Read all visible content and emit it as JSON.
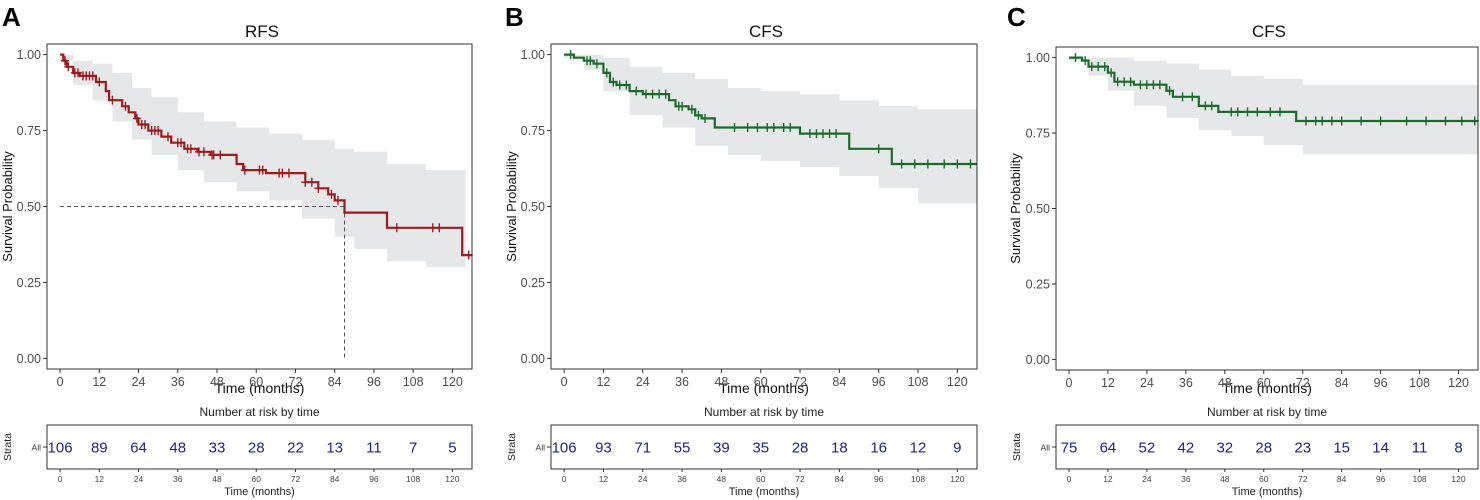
{
  "colors": {
    "band": "#e6e7e9",
    "axis": "#333333",
    "tick_text": "#4d4d4d",
    "risk_number": "#1f1f8f",
    "median_line": "#555555"
  },
  "chart_data": [
    {
      "type": "line",
      "panel_label": "A",
      "title": "RFS",
      "xlabel": "Time (months)",
      "ylabel": "Survival Probability",
      "xlim": [
        -4,
        126
      ],
      "ylim": [
        -0.035,
        1.035
      ],
      "x_ticks": [
        0,
        12,
        24,
        36,
        48,
        60,
        72,
        84,
        96,
        108,
        120
      ],
      "x_tick_labels": [
        "0",
        "12",
        "24",
        "36",
        "48",
        "60",
        "72",
        "84",
        "96",
        "108",
        "120"
      ],
      "y_ticks": [
        0,
        0.25,
        0.5,
        0.75,
        1
      ],
      "y_tick_labels": [
        "0.00",
        "0.25",
        "0.50",
        "0.75",
        "1.00"
      ],
      "line_color": "#9c1c1c",
      "median": {
        "value": 0.5,
        "time": 87
      },
      "series": [
        {
          "name": "All",
          "steps": [
            [
              0,
              1.0
            ],
            [
              1,
              0.98
            ],
            [
              2,
              0.96
            ],
            [
              4,
              0.94
            ],
            [
              6,
              0.93
            ],
            [
              11,
              0.91
            ],
            [
              14,
              0.88
            ],
            [
              15,
              0.85
            ],
            [
              19,
              0.83
            ],
            [
              21,
              0.81
            ],
            [
              23,
              0.79
            ],
            [
              24,
              0.77
            ],
            [
              27,
              0.75
            ],
            [
              31,
              0.73
            ],
            [
              34,
              0.71
            ],
            [
              38,
              0.69
            ],
            [
              42,
              0.68
            ],
            [
              46,
              0.67
            ],
            [
              54,
              0.64
            ],
            [
              56,
              0.62
            ],
            [
              63,
              0.61
            ],
            [
              75,
              0.58
            ],
            [
              79,
              0.56
            ],
            [
              82,
              0.54
            ],
            [
              84,
              0.52
            ],
            [
              87,
              0.48
            ],
            [
              100,
              0.43
            ],
            [
              123,
              0.34
            ],
            [
              126,
              0.34
            ]
          ],
          "band_upper": [
            [
              0,
              1.0
            ],
            [
              4,
              0.98
            ],
            [
              10,
              0.97
            ],
            [
              16,
              0.94
            ],
            [
              22,
              0.89
            ],
            [
              28,
              0.86
            ],
            [
              36,
              0.81
            ],
            [
              44,
              0.78
            ],
            [
              54,
              0.76
            ],
            [
              64,
              0.74
            ],
            [
              74,
              0.72
            ],
            [
              84,
              0.69
            ],
            [
              90,
              0.68
            ],
            [
              100,
              0.64
            ],
            [
              112,
              0.62
            ],
            [
              124,
              0.57
            ]
          ],
          "band_lower": [
            [
              0,
              0.98
            ],
            [
              4,
              0.9
            ],
            [
              10,
              0.85
            ],
            [
              16,
              0.78
            ],
            [
              22,
              0.72
            ],
            [
              28,
              0.67
            ],
            [
              36,
              0.62
            ],
            [
              44,
              0.58
            ],
            [
              54,
              0.55
            ],
            [
              64,
              0.52
            ],
            [
              74,
              0.46
            ],
            [
              84,
              0.4
            ],
            [
              90,
              0.36
            ],
            [
              100,
              0.32
            ],
            [
              112,
              0.3
            ],
            [
              124,
              0.2
            ]
          ],
          "censor_times": [
            1.5,
            2.5,
            4.5,
            5.5,
            7,
            8,
            9,
            10,
            12,
            16,
            20,
            23.5,
            25,
            26,
            28,
            29,
            30,
            33,
            36,
            37,
            39,
            40,
            42.5,
            44,
            46.5,
            47,
            49,
            56.5,
            61,
            62,
            67,
            68,
            70,
            75,
            77,
            79,
            83,
            85,
            103,
            114,
            116,
            125
          ]
        }
      ],
      "risk_table": {
        "title": "Number at risk by time",
        "ylabel": "Strata",
        "row_label": "All",
        "xlabel": "Time (months)",
        "times": [
          0,
          12,
          24,
          36,
          48,
          60,
          72,
          84,
          96,
          108,
          120
        ],
        "time_labels": [
          "0",
          "12",
          "24",
          "36",
          "48",
          "60",
          "72",
          "84",
          "96",
          "108",
          "120"
        ],
        "counts": [
          106,
          89,
          64,
          48,
          33,
          28,
          22,
          13,
          11,
          7,
          5
        ]
      }
    },
    {
      "type": "line",
      "panel_label": "B",
      "title": "CFS",
      "xlabel": "Time (months)",
      "ylabel": "Survival Probability",
      "xlim": [
        -4,
        126
      ],
      "ylim": [
        -0.035,
        1.035
      ],
      "x_ticks": [
        0,
        12,
        24,
        36,
        48,
        60,
        72,
        84,
        96,
        108,
        120
      ],
      "x_tick_labels": [
        "0",
        "12",
        "24",
        "36",
        "48",
        "60",
        "72",
        "84",
        "96",
        "108",
        "120"
      ],
      "y_ticks": [
        0,
        0.25,
        0.5,
        0.75,
        1
      ],
      "y_tick_labels": [
        "0.00",
        "0.25",
        "0.50",
        "0.75",
        "1.00"
      ],
      "line_color": "#1b6b2a",
      "median": null,
      "series": [
        {
          "name": "All",
          "steps": [
            [
              0,
              1.0
            ],
            [
              3,
              0.99
            ],
            [
              6,
              0.98
            ],
            [
              9,
              0.97
            ],
            [
              12,
              0.94
            ],
            [
              14,
              0.91
            ],
            [
              16,
              0.9
            ],
            [
              20,
              0.88
            ],
            [
              24,
              0.87
            ],
            [
              32,
              0.85
            ],
            [
              34,
              0.83
            ],
            [
              38,
              0.82
            ],
            [
              40,
              0.8
            ],
            [
              42,
              0.79
            ],
            [
              46,
              0.76
            ],
            [
              72,
              0.74
            ],
            [
              87,
              0.69
            ],
            [
              100,
              0.64
            ],
            [
              126,
              0.64
            ]
          ],
          "band_upper": [
            [
              0,
              1.0
            ],
            [
              6,
              1.0
            ],
            [
              12,
              0.99
            ],
            [
              20,
              0.96
            ],
            [
              30,
              0.94
            ],
            [
              40,
              0.92
            ],
            [
              50,
              0.89
            ],
            [
              60,
              0.88
            ],
            [
              72,
              0.87
            ],
            [
              84,
              0.85
            ],
            [
              96,
              0.83
            ],
            [
              108,
              0.82
            ],
            [
              126,
              0.82
            ]
          ],
          "band_lower": [
            [
              0,
              0.99
            ],
            [
              6,
              0.95
            ],
            [
              12,
              0.88
            ],
            [
              20,
              0.8
            ],
            [
              30,
              0.76
            ],
            [
              40,
              0.7
            ],
            [
              50,
              0.67
            ],
            [
              60,
              0.65
            ],
            [
              72,
              0.63
            ],
            [
              84,
              0.6
            ],
            [
              96,
              0.56
            ],
            [
              108,
              0.51
            ],
            [
              126,
              0.51
            ]
          ],
          "censor_times": [
            2,
            7,
            8,
            10,
            13,
            15,
            17,
            19,
            22,
            25,
            27,
            29,
            31,
            35,
            36,
            39,
            41,
            43,
            52,
            56,
            59,
            62,
            64,
            67,
            69,
            75,
            77,
            79,
            81,
            83,
            96,
            103,
            107,
            111,
            116,
            120,
            124
          ]
        }
      ],
      "risk_table": {
        "title": "Number at risk by time",
        "ylabel": "Strata",
        "row_label": "All",
        "xlabel": "Time (months)",
        "times": [
          0,
          12,
          24,
          36,
          48,
          60,
          72,
          84,
          96,
          108,
          120
        ],
        "time_labels": [
          "0",
          "12",
          "24",
          "36",
          "48",
          "60",
          "72",
          "84",
          "96",
          "108",
          "120"
        ],
        "counts": [
          106,
          93,
          71,
          55,
          39,
          35,
          28,
          18,
          16,
          12,
          9
        ]
      }
    },
    {
      "type": "line",
      "panel_label": "C",
      "title": "CFS",
      "xlabel": "Time (months)",
      "ylabel": "Survival Probability",
      "xlim": [
        -4,
        126
      ],
      "ylim": [
        -0.035,
        1.035
      ],
      "x_ticks": [
        0,
        12,
        24,
        36,
        48,
        60,
        72,
        84,
        96,
        108,
        120
      ],
      "x_tick_labels": [
        "0",
        "12",
        "24",
        "36",
        "48",
        "60",
        "72",
        "84",
        "96",
        "108",
        "120"
      ],
      "y_ticks": [
        0,
        0.25,
        0.5,
        0.75,
        1
      ],
      "y_tick_labels": [
        "0.00",
        "0.25",
        "0.50",
        "0.75",
        "1.00"
      ],
      "line_color": "#1b6b2a",
      "median": null,
      "series": [
        {
          "name": "All",
          "steps": [
            [
              0,
              1.0
            ],
            [
              4,
              0.99
            ],
            [
              6,
              0.97
            ],
            [
              12,
              0.95
            ],
            [
              14,
              0.92
            ],
            [
              20,
              0.91
            ],
            [
              30,
              0.89
            ],
            [
              32,
              0.87
            ],
            [
              40,
              0.84
            ],
            [
              46,
              0.82
            ],
            [
              70,
              0.79
            ],
            [
              126,
              0.79
            ]
          ],
          "band_upper": [
            [
              0,
              1.0
            ],
            [
              6,
              1.0
            ],
            [
              12,
              1.0
            ],
            [
              20,
              0.99
            ],
            [
              30,
              0.98
            ],
            [
              40,
              0.96
            ],
            [
              50,
              0.94
            ],
            [
              60,
              0.93
            ],
            [
              72,
              0.91
            ],
            [
              84,
              0.91
            ],
            [
              96,
              0.91
            ],
            [
              126,
              0.91
            ]
          ],
          "band_lower": [
            [
              0,
              0.99
            ],
            [
              6,
              0.94
            ],
            [
              12,
              0.89
            ],
            [
              20,
              0.84
            ],
            [
              30,
              0.8
            ],
            [
              40,
              0.76
            ],
            [
              50,
              0.74
            ],
            [
              60,
              0.71
            ],
            [
              72,
              0.68
            ],
            [
              84,
              0.68
            ],
            [
              96,
              0.68
            ],
            [
              126,
              0.68
            ]
          ],
          "censor_times": [
            2,
            5,
            7,
            9,
            11,
            13,
            15,
            17,
            19,
            22,
            24,
            26,
            28,
            31,
            35,
            38,
            42,
            44,
            50,
            52,
            55,
            58,
            62,
            65,
            73,
            76,
            78,
            81,
            84,
            90,
            96,
            104,
            110,
            116,
            121,
            125
          ]
        }
      ],
      "risk_table": {
        "title": "Number at risk by time",
        "ylabel": "Strata",
        "row_label": "All",
        "xlabel": "Time (months)",
        "times": [
          0,
          12,
          24,
          36,
          48,
          60,
          72,
          84,
          96,
          108,
          120
        ],
        "time_labels": [
          "0",
          "12",
          "24",
          "36",
          "48",
          "60",
          "72",
          "84",
          "96",
          "108",
          "120"
        ],
        "counts": [
          75,
          64,
          52,
          42,
          32,
          28,
          23,
          15,
          14,
          11,
          8
        ]
      }
    }
  ]
}
